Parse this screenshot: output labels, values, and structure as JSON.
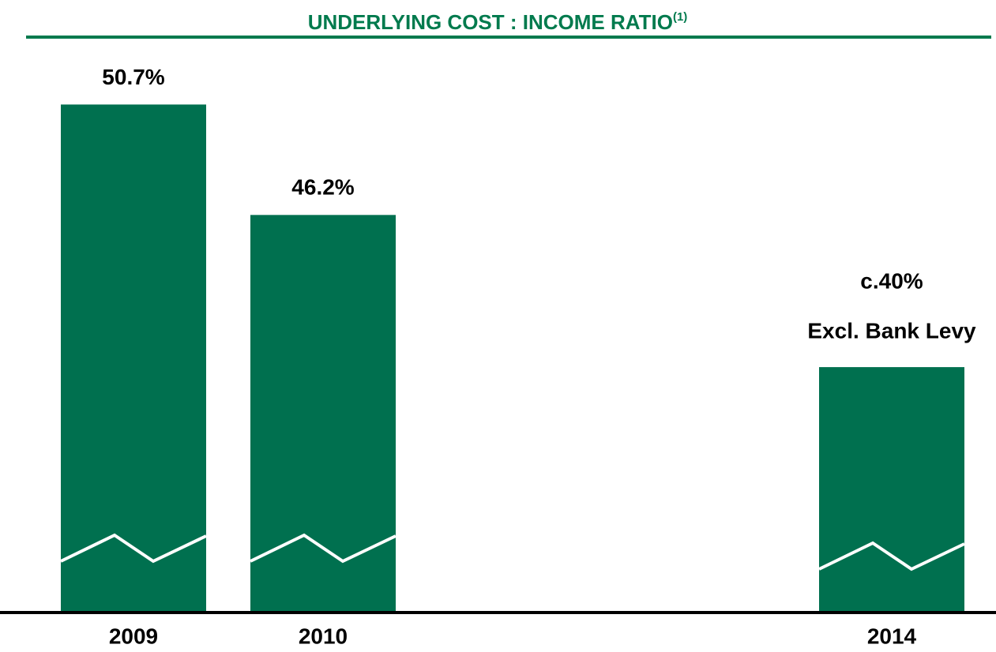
{
  "chart_data": {
    "type": "bar",
    "title": "UNDERLYING COST : INCOME RATIO",
    "title_note": "(1)",
    "categories": [
      "2009",
      "2010",
      null,
      null,
      "2014"
    ],
    "values": [
      50.7,
      46.2,
      null,
      null,
      40
    ],
    "value_labels": [
      "50.7%",
      "46.2%",
      null,
      null,
      "c.40%"
    ],
    "annotation": "Excl. Bank Levy",
    "color": "#00704f",
    "ylim": [
      30,
      52
    ]
  }
}
